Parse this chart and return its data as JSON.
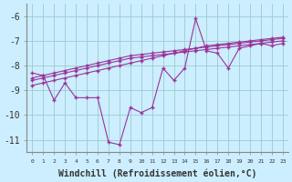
{
  "x": [
    0,
    1,
    2,
    3,
    4,
    5,
    6,
    7,
    8,
    9,
    10,
    11,
    12,
    13,
    14,
    15,
    16,
    17,
    18,
    19,
    20,
    21,
    22,
    23
  ],
  "main_line": [
    -8.3,
    -8.4,
    -9.4,
    -8.7,
    -9.3,
    -9.3,
    -9.3,
    -11.1,
    -11.2,
    -9.7,
    -9.9,
    -9.7,
    -8.1,
    -8.6,
    -8.1,
    -6.1,
    -7.4,
    -7.5,
    -8.1,
    -7.3,
    -7.2,
    -7.1,
    -7.2,
    -7.1
  ],
  "trend1": [
    -8.5,
    -8.4,
    -8.3,
    -8.2,
    -8.1,
    -8.0,
    -7.9,
    -7.8,
    -7.7,
    -7.6,
    -7.55,
    -7.5,
    -7.45,
    -7.4,
    -7.35,
    -7.3,
    -7.25,
    -7.2,
    -7.15,
    -7.1,
    -7.05,
    -7.0,
    -6.95,
    -6.9
  ],
  "trend2": [
    -8.6,
    -8.5,
    -8.4,
    -8.3,
    -8.2,
    -8.1,
    -8.0,
    -7.9,
    -7.8,
    -7.7,
    -7.65,
    -7.6,
    -7.55,
    -7.5,
    -7.45,
    -7.4,
    -7.35,
    -7.3,
    -7.25,
    -7.2,
    -7.15,
    -7.1,
    -7.05,
    -7.0
  ],
  "trend3": [
    -8.8,
    -8.7,
    -8.6,
    -8.5,
    -8.4,
    -8.3,
    -8.2,
    -8.1,
    -8.0,
    -7.9,
    -7.8,
    -7.7,
    -7.6,
    -7.5,
    -7.4,
    -7.3,
    -7.2,
    -7.15,
    -7.1,
    -7.05,
    -7.0,
    -6.95,
    -6.9,
    -6.85
  ],
  "color": "#993399",
  "bg_color": "#cceeff",
  "grid_color": "#99cccc",
  "xlabel": "Windchill (Refroidissement éolien,°C)",
  "xlabel_fontsize": 7,
  "ylim": [
    -11.5,
    -5.5
  ],
  "yticks": [
    -11,
    -10,
    -9,
    -8,
    -7,
    -6
  ],
  "marker": "+",
  "markersize": 3,
  "linewidth": 0.8
}
